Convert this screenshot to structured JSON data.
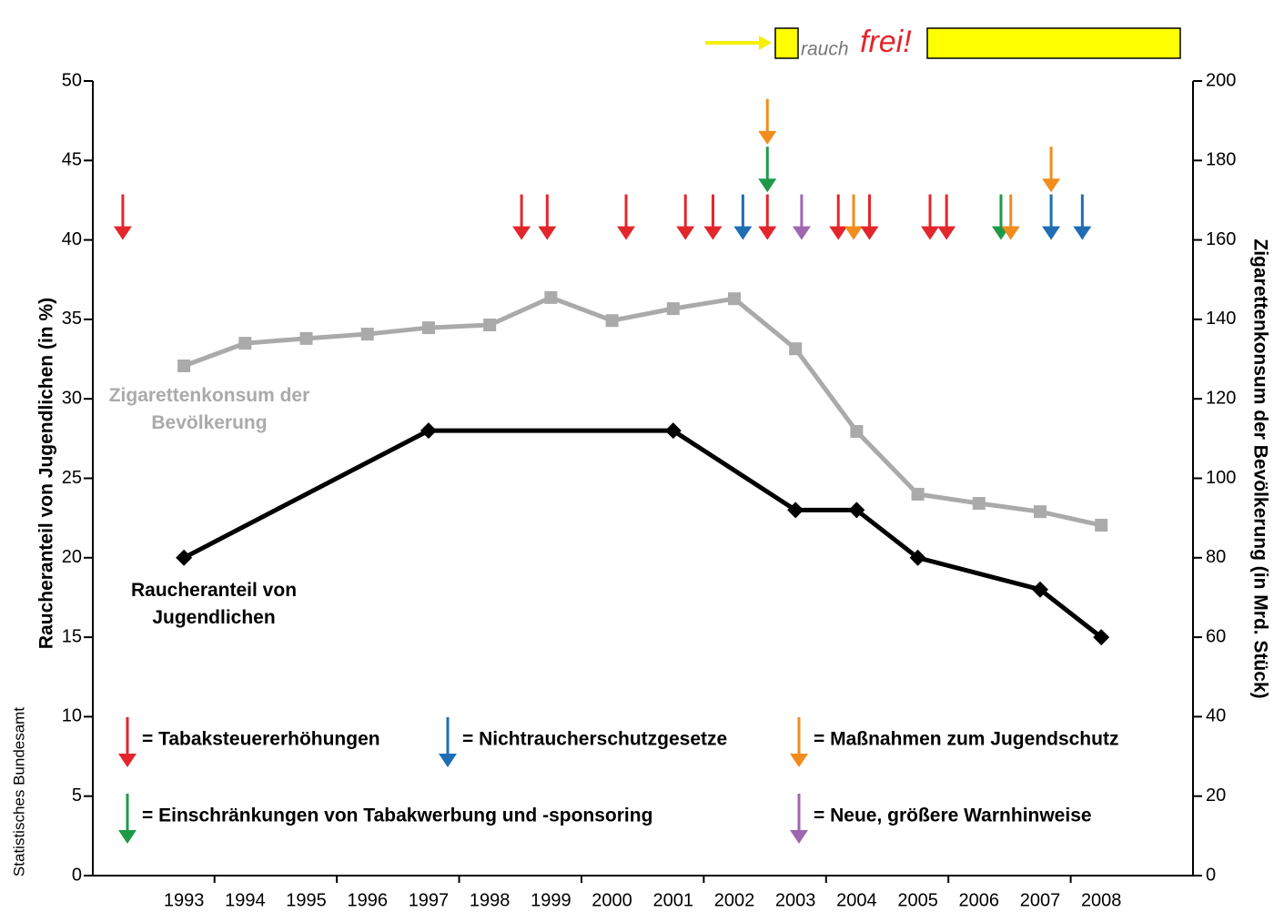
{
  "chart_data": {
    "type": "line",
    "logo": {
      "first": "rauch",
      "second": "frei!"
    },
    "source": "Statistisches Bundesamt",
    "ylabel": "Raucheranteil von Jugendlichen (in %)",
    "y2label": "Zigarettenkonsum der Bevölkerung (in Mrd. Stück)",
    "xlim": [
      1991.51,
      2009.5
    ],
    "xticks": [
      1993,
      1994,
      1995,
      1996,
      1997,
      1998,
      1999,
      2000,
      2001,
      2002,
      2003,
      2004,
      2005,
      2006,
      2007,
      2008
    ],
    "ylim": [
      0,
      50
    ],
    "yticks": [
      0,
      5,
      10,
      15,
      20,
      25,
      30,
      35,
      40,
      45,
      50
    ],
    "y2lim": [
      0,
      200
    ],
    "y2ticks": [
      0,
      20,
      40,
      60,
      80,
      100,
      120,
      140,
      160,
      180,
      200
    ],
    "grid": false,
    "series": [
      {
        "name": "Zigarettenkonsum der Bevölkerung",
        "color": "#aaaaaa",
        "axis": "y2",
        "marker": "square",
        "x": [
          1993,
          1994,
          1995,
          1996,
          1997,
          1998,
          1999,
          2000,
          2001,
          2002,
          2003,
          2004,
          2005,
          2006,
          2007,
          2008
        ],
        "values": [
          128.3,
          134,
          135.2,
          136.3,
          137.9,
          138.6,
          145.5,
          139.7,
          142.7,
          145.2,
          132.6,
          111.8,
          96,
          93.7,
          91.6,
          88.2
        ]
      },
      {
        "name": "Raucheranteil von Jugendlichen",
        "color": "#000000",
        "marker": "diamond",
        "x": [
          1993,
          1997,
          2001,
          2003,
          2004,
          2005,
          2007,
          2008
        ],
        "values": [
          20,
          28,
          28,
          23,
          23,
          20,
          18,
          15
        ]
      }
    ],
    "event_legend": [
      {
        "label": "= Tabaksteuererhöhungen",
        "color": "#e3262b"
      },
      {
        "label": "= Nichtraucherschutzgesetze",
        "color": "#1f6db5"
      },
      {
        "label": "= Maßnahmen zum Jugendschutz",
        "color": "#f28c1c"
      },
      {
        "label": "= Einschränkungen von Tabakwerbung und -sponsoring",
        "color": "#1e9a47"
      },
      {
        "label": "= Neue, größere Warnhinweise",
        "color": "#a066b0"
      }
    ],
    "events": [
      {
        "x": 1992.0,
        "y": 40,
        "color": "#e3262b"
      },
      {
        "x": 1998.52,
        "y": 40,
        "color": "#e3262b"
      },
      {
        "x": 1998.94,
        "y": 40,
        "color": "#e3262b"
      },
      {
        "x": 2000.23,
        "y": 40,
        "color": "#e3262b"
      },
      {
        "x": 2001.2,
        "y": 40,
        "color": "#e3262b"
      },
      {
        "x": 2001.65,
        "y": 40,
        "color": "#e3262b"
      },
      {
        "x": 2002.14,
        "y": 40,
        "color": "#1f6db5"
      },
      {
        "x": 2002.54,
        "y": 40,
        "color": "#e3262b"
      },
      {
        "x": 2002.54,
        "y": 43,
        "color": "#1e9a47"
      },
      {
        "x": 2002.54,
        "y": 46,
        "color": "#f28c1c"
      },
      {
        "x": 2003.1,
        "y": 40,
        "color": "#a066b0"
      },
      {
        "x": 2003.7,
        "y": 40,
        "color": "#e3262b"
      },
      {
        "x": 2003.95,
        "y": 40,
        "color": "#f28c1c"
      },
      {
        "x": 2004.21,
        "y": 40,
        "color": "#e3262b"
      },
      {
        "x": 2005.2,
        "y": 40,
        "color": "#e3262b"
      },
      {
        "x": 2005.47,
        "y": 40,
        "color": "#e3262b"
      },
      {
        "x": 2006.36,
        "y": 40,
        "color": "#1e9a47"
      },
      {
        "x": 2006.52,
        "y": 40,
        "color": "#f28c1c"
      },
      {
        "x": 2007.18,
        "y": 40,
        "color": "#1f6db5"
      },
      {
        "x": 2007.18,
        "y": 43,
        "color": "#f28c1c"
      },
      {
        "x": 2007.69,
        "y": 40,
        "color": "#1f6db5"
      }
    ]
  }
}
